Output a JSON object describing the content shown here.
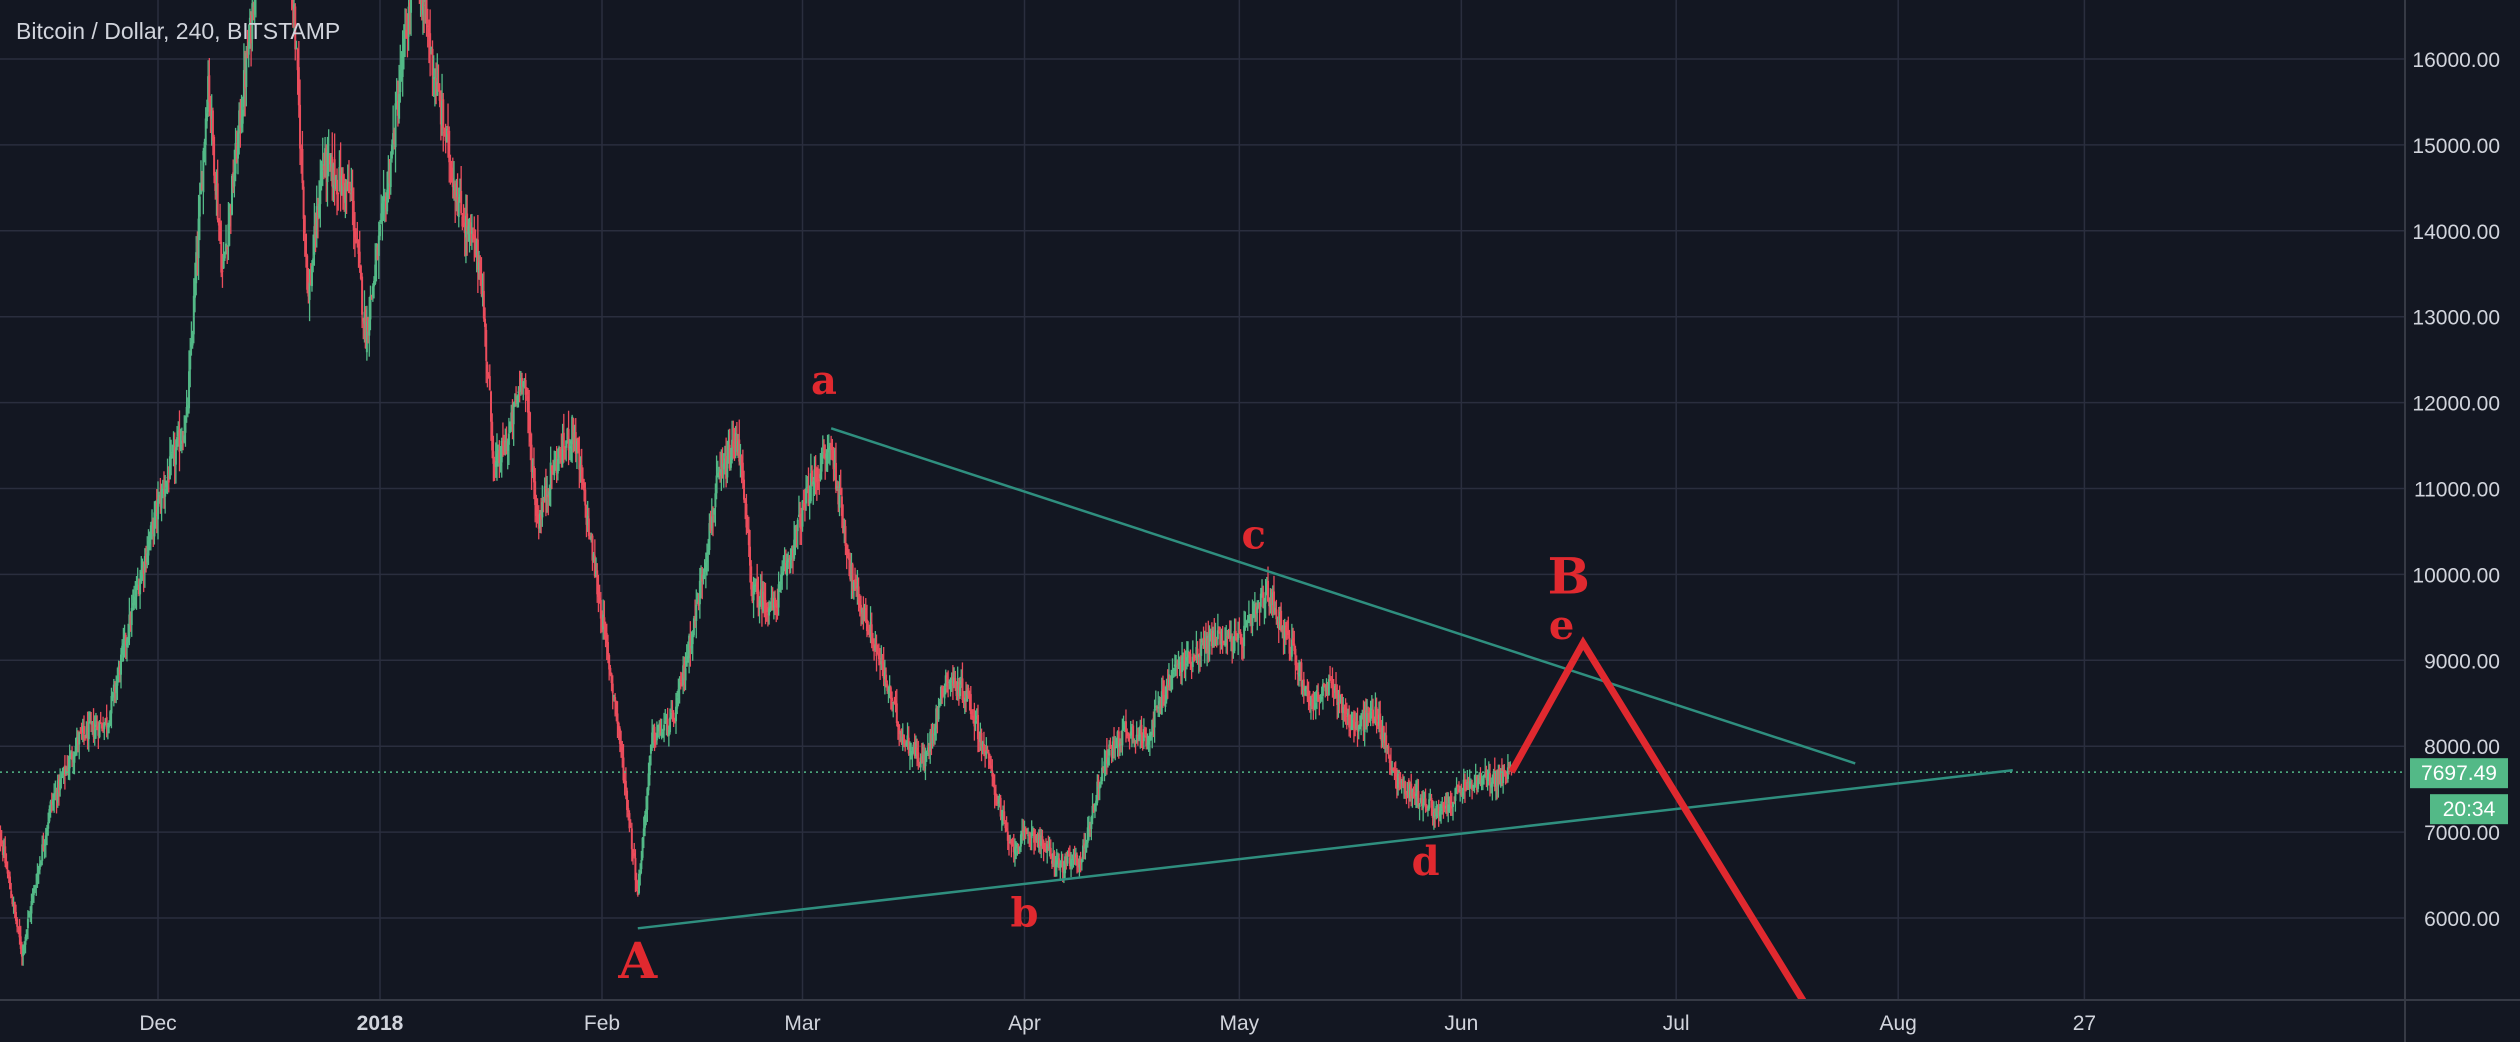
{
  "chart": {
    "title": "Bitcoin / Dollar, 240, BITSTAMP",
    "price_label": "7697.49",
    "timer_label": "20:34",
    "colors": {
      "background": "#131722",
      "grid": "#2a2e3e",
      "axis_text": "#d1d4dc",
      "up": "#53b987",
      "down": "#eb4d5c",
      "trendline": "#2f8f7f",
      "annotation": "#e0292f",
      "price_badge": "#53b987"
    }
  },
  "chart_data": {
    "type": "candlestick",
    "symbol": "Bitcoin / Dollar",
    "interval": "240",
    "exchange": "BITSTAMP",
    "last_price": 7697.49,
    "ylim": [
      5000,
      16700
    ],
    "y_ticks": [
      6000,
      7000,
      8000,
      9000,
      10000,
      11000,
      12000,
      13000,
      14000,
      15000,
      16000
    ],
    "y_tick_labels": [
      "6000.00",
      "7000.00",
      "8000.00",
      "9000.00",
      "10000.00",
      "11000.00",
      "12000.00",
      "13000.00",
      "14000.00",
      "15000.00",
      "16000.00"
    ],
    "x_ticks": [
      {
        "date": "2017-12-01",
        "label": "Dec",
        "bold": false
      },
      {
        "date": "2018-01-01",
        "label": "2018",
        "bold": true
      },
      {
        "date": "2018-02-01",
        "label": "Feb",
        "bold": false
      },
      {
        "date": "2018-03-01",
        "label": "Mar",
        "bold": false
      },
      {
        "date": "2018-04-01",
        "label": "Apr",
        "bold": false
      },
      {
        "date": "2018-05-01",
        "label": "May",
        "bold": false
      },
      {
        "date": "2018-06-01",
        "label": "Jun",
        "bold": false
      },
      {
        "date": "2018-07-01",
        "label": "Jul",
        "bold": false
      },
      {
        "date": "2018-08-01",
        "label": "Aug",
        "bold": false
      },
      {
        "date": "2018-08-27",
        "label": "27",
        "bold": false
      }
    ],
    "price_path": [
      [
        "2017-11-08",
        7400
      ],
      [
        "2017-11-12",
        5600
      ],
      [
        "2017-11-16",
        7300
      ],
      [
        "2017-11-20",
        8100
      ],
      [
        "2017-11-24",
        8300
      ],
      [
        "2017-11-28",
        9800
      ],
      [
        "2017-12-01",
        10800
      ],
      [
        "2017-12-05",
        11800
      ],
      [
        "2017-12-08",
        15800
      ],
      [
        "2017-12-10",
        13500
      ],
      [
        "2017-12-14",
        16400
      ],
      [
        "2017-12-17",
        19500
      ],
      [
        "2017-12-20",
        16500
      ],
      [
        "2017-12-22",
        13200
      ],
      [
        "2017-12-24",
        14800
      ],
      [
        "2017-12-28",
        14400
      ],
      [
        "2017-12-30",
        12800
      ],
      [
        "2018-01-02",
        14500
      ],
      [
        "2018-01-06",
        17200
      ],
      [
        "2018-01-09",
        15600
      ],
      [
        "2018-01-12",
        14300
      ],
      [
        "2018-01-15",
        13600
      ],
      [
        "2018-01-17",
        11200
      ],
      [
        "2018-01-19",
        11600
      ],
      [
        "2018-01-21",
        12400
      ],
      [
        "2018-01-23",
        10600
      ],
      [
        "2018-01-25",
        11200
      ],
      [
        "2018-01-28",
        11700
      ],
      [
        "2018-02-01",
        9500
      ],
      [
        "2018-02-03",
        8400
      ],
      [
        "2018-02-06",
        6300
      ],
      [
        "2018-02-08",
        8100
      ],
      [
        "2018-02-11",
        8300
      ],
      [
        "2018-02-14",
        9500
      ],
      [
        "2018-02-17",
        11000
      ],
      [
        "2018-02-20",
        11600
      ],
      [
        "2018-02-22",
        9800
      ],
      [
        "2018-02-25",
        9600
      ],
      [
        "2018-03-02",
        11000
      ],
      [
        "2018-03-05",
        11500
      ],
      [
        "2018-03-08",
        9900
      ],
      [
        "2018-03-11",
        9200
      ],
      [
        "2018-03-15",
        8100
      ],
      [
        "2018-03-18",
        7800
      ],
      [
        "2018-03-21",
        8800
      ],
      [
        "2018-03-24",
        8600
      ],
      [
        "2018-03-27",
        7800
      ],
      [
        "2018-03-30",
        6800
      ],
      [
        "2018-04-02",
        7000
      ],
      [
        "2018-04-06",
        6600
      ],
      [
        "2018-04-09",
        6700
      ],
      [
        "2018-04-12",
        7800
      ],
      [
        "2018-04-15",
        8200
      ],
      [
        "2018-04-18",
        8100
      ],
      [
        "2018-04-22",
        8900
      ],
      [
        "2018-04-25",
        9100
      ],
      [
        "2018-04-28",
        9300
      ],
      [
        "2018-05-01",
        9200
      ],
      [
        "2018-05-05",
        9800
      ],
      [
        "2018-05-08",
        9200
      ],
      [
        "2018-05-11",
        8500
      ],
      [
        "2018-05-14",
        8700
      ],
      [
        "2018-05-17",
        8200
      ],
      [
        "2018-05-20",
        8400
      ],
      [
        "2018-05-23",
        7600
      ],
      [
        "2018-05-26",
        7400
      ],
      [
        "2018-05-29",
        7200
      ],
      [
        "2018-06-01",
        7500
      ],
      [
        "2018-06-04",
        7600
      ],
      [
        "2018-06-07",
        7650
      ],
      [
        "2018-06-08",
        7697
      ]
    ],
    "trendlines": [
      {
        "from": [
          "2018-03-05",
          11700
        ],
        "to": [
          "2018-07-26",
          7800
        ]
      },
      {
        "from": [
          "2018-02-06",
          5880
        ],
        "to": [
          "2018-08-17",
          7720
        ]
      }
    ],
    "projection": [
      [
        "2018-06-08",
        7700
      ],
      [
        "2018-06-18",
        9200
      ],
      [
        "2018-07-19",
        5000
      ]
    ],
    "labels": [
      {
        "text": "a",
        "date": "2018-03-04",
        "price": 12100,
        "size": "small"
      },
      {
        "text": "b",
        "date": "2018-04-01",
        "price": 5900,
        "size": "small"
      },
      {
        "text": "c",
        "date": "2018-05-03",
        "price": 10300,
        "size": "small"
      },
      {
        "text": "d",
        "date": "2018-05-27",
        "price": 6500,
        "size": "small"
      },
      {
        "text": "e",
        "date": "2018-06-15",
        "price": 9250,
        "size": "small"
      },
      {
        "text": "A",
        "date": "2018-02-06",
        "price": 5300,
        "size": "large"
      },
      {
        "text": "B",
        "date": "2018-06-16",
        "price": 9780,
        "size": "large"
      }
    ]
  }
}
